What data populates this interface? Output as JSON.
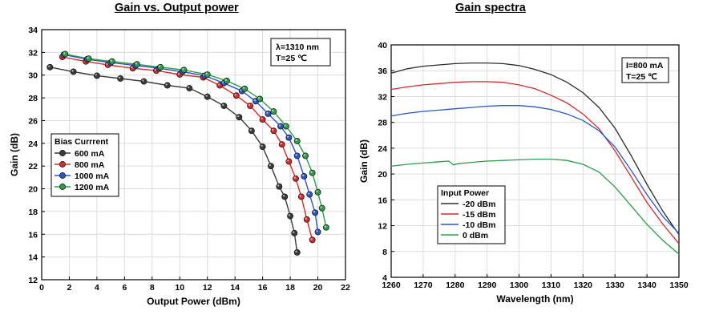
{
  "chart_data": [
    {
      "type": "line",
      "title": "Gain vs. Output power",
      "xlabel": "Output Power (dBm)",
      "ylabel": "Gain (dB)",
      "xlim": [
        0,
        22
      ],
      "ylim": [
        12,
        34
      ],
      "xticks": [
        0,
        2,
        4,
        6,
        8,
        10,
        12,
        14,
        16,
        18,
        20,
        22
      ],
      "yticks": [
        12,
        14,
        16,
        18,
        20,
        22,
        24,
        26,
        28,
        30,
        32,
        34
      ],
      "annotation": [
        "λ=1310 nm",
        "T=25 ℃"
      ],
      "legend_title": "Bias Currrent",
      "legend_position": "left-middle",
      "markers": true,
      "grid": true,
      "series": [
        {
          "name": "600 mA",
          "color": "#3a3a3a",
          "points": [
            [
              0.6,
              30.7
            ],
            [
              2.3,
              30.3
            ],
            [
              4.0,
              29.95
            ],
            [
              5.7,
              29.7
            ],
            [
              7.4,
              29.45
            ],
            [
              9.1,
              29.1
            ],
            [
              10.7,
              28.85
            ],
            [
              12.0,
              28.1
            ],
            [
              13.2,
              27.3
            ],
            [
              14.3,
              26.3
            ],
            [
              15.2,
              25.1
            ],
            [
              16.0,
              23.7
            ],
            [
              16.6,
              22.0
            ],
            [
              17.2,
              20.2
            ],
            [
              17.6,
              19.3
            ],
            [
              18.0,
              17.6
            ],
            [
              18.3,
              16.1
            ],
            [
              18.5,
              14.4
            ]
          ]
        },
        {
          "name": "800 mA",
          "color": "#d42a2a",
          "points": [
            [
              1.5,
              31.6
            ],
            [
              3.2,
              31.2
            ],
            [
              4.8,
              30.9
            ],
            [
              6.6,
              30.6
            ],
            [
              8.3,
              30.4
            ],
            [
              10.0,
              30.05
            ],
            [
              11.7,
              29.8
            ],
            [
              12.9,
              29.1
            ],
            [
              14.1,
              28.2
            ],
            [
              15.1,
              27.3
            ],
            [
              16.0,
              26.1
            ],
            [
              16.8,
              25.1
            ],
            [
              17.4,
              23.9
            ],
            [
              17.9,
              22.4
            ],
            [
              18.4,
              20.9
            ],
            [
              18.8,
              19.3
            ],
            [
              19.2,
              17.3
            ],
            [
              19.6,
              15.5
            ]
          ]
        },
        {
          "name": "1000 mA",
          "color": "#2a56c4",
          "points": [
            [
              1.6,
              31.8
            ],
            [
              3.3,
              31.4
            ],
            [
              5.0,
              31.1
            ],
            [
              6.8,
              30.85
            ],
            [
              8.5,
              30.6
            ],
            [
              10.2,
              30.3
            ],
            [
              11.8,
              29.95
            ],
            [
              13.2,
              29.3
            ],
            [
              14.5,
              28.6
            ],
            [
              15.5,
              27.7
            ],
            [
              16.4,
              26.6
            ],
            [
              17.3,
              25.5
            ],
            [
              17.9,
              24.5
            ],
            [
              18.5,
              22.9
            ],
            [
              19.0,
              21.1
            ],
            [
              19.4,
              19.5
            ],
            [
              19.8,
              17.9
            ],
            [
              20.0,
              16.2
            ]
          ]
        },
        {
          "name": "1200 mA",
          "color": "#2e9a4a",
          "points": [
            [
              1.7,
              31.85
            ],
            [
              3.4,
              31.45
            ],
            [
              5.1,
              31.2
            ],
            [
              6.9,
              30.95
            ],
            [
              8.6,
              30.7
            ],
            [
              10.3,
              30.45
            ],
            [
              12.0,
              30.05
            ],
            [
              13.4,
              29.5
            ],
            [
              14.7,
              28.8
            ],
            [
              15.8,
              27.9
            ],
            [
              16.8,
              26.8
            ],
            [
              17.7,
              25.5
            ],
            [
              18.5,
              24.2
            ],
            [
              19.1,
              22.9
            ],
            [
              19.6,
              21.4
            ],
            [
              20.0,
              19.7
            ],
            [
              20.3,
              18.3
            ],
            [
              20.6,
              16.6
            ]
          ]
        }
      ]
    },
    {
      "type": "line",
      "title": "Gain spectra",
      "xlabel": "Wavelength (nm)",
      "ylabel": "Gain (dB)",
      "xlim": [
        1260,
        1350
      ],
      "ylim": [
        4,
        40
      ],
      "xticks": [
        1260,
        1270,
        1280,
        1290,
        1300,
        1310,
        1320,
        1330,
        1340,
        1350
      ],
      "yticks": [
        4,
        8,
        12,
        16,
        20,
        24,
        28,
        32,
        36,
        40
      ],
      "annotation": [
        "I=800 mA",
        "T=25 ℃"
      ],
      "legend_title": "Input Power",
      "legend_position": "lower-left",
      "grid": true,
      "series": [
        {
          "name": "-20 dBm",
          "color": "#2b2b2b",
          "points": [
            [
              1260,
              35.6
            ],
            [
              1265,
              36.3
            ],
            [
              1270,
              36.7
            ],
            [
              1275,
              36.9
            ],
            [
              1280,
              37.1
            ],
            [
              1285,
              37.2
            ],
            [
              1290,
              37.2
            ],
            [
              1295,
              37.1
            ],
            [
              1300,
              36.8
            ],
            [
              1305,
              36.2
            ],
            [
              1310,
              35.4
            ],
            [
              1315,
              34.2
            ],
            [
              1320,
              32.6
            ],
            [
              1325,
              30.3
            ],
            [
              1330,
              27.1
            ],
            [
              1335,
              22.9
            ],
            [
              1340,
              18.4
            ],
            [
              1345,
              14.2
            ],
            [
              1350,
              10.6
            ]
          ]
        },
        {
          "name": "-15 dBm",
          "color": "#d42a2a",
          "points": [
            [
              1260,
              33.1
            ],
            [
              1265,
              33.5
            ],
            [
              1270,
              33.8
            ],
            [
              1275,
              34.0
            ],
            [
              1280,
              34.2
            ],
            [
              1285,
              34.3
            ],
            [
              1290,
              34.3
            ],
            [
              1295,
              34.2
            ],
            [
              1300,
              33.8
            ],
            [
              1305,
              33.2
            ],
            [
              1310,
              32.2
            ],
            [
              1315,
              31.0
            ],
            [
              1320,
              29.3
            ],
            [
              1325,
              27.0
            ],
            [
              1330,
              23.6
            ],
            [
              1335,
              19.6
            ],
            [
              1340,
              15.6
            ],
            [
              1345,
              12.2
            ],
            [
              1350,
              9.2
            ]
          ]
        },
        {
          "name": "-10 dBm",
          "color": "#2a56c4",
          "points": [
            [
              1260,
              29.0
            ],
            [
              1265,
              29.4
            ],
            [
              1270,
              29.7
            ],
            [
              1275,
              29.9
            ],
            [
              1280,
              30.1
            ],
            [
              1285,
              30.3
            ],
            [
              1290,
              30.5
            ],
            [
              1295,
              30.6
            ],
            [
              1300,
              30.6
            ],
            [
              1305,
              30.4
            ],
            [
              1310,
              30.0
            ],
            [
              1315,
              29.3
            ],
            [
              1320,
              28.3
            ],
            [
              1325,
              26.7
            ],
            [
              1330,
              24.2
            ],
            [
              1335,
              20.6
            ],
            [
              1340,
              16.8
            ],
            [
              1345,
              13.4
            ],
            [
              1350,
              10.8
            ]
          ]
        },
        {
          "name": "0 dBm",
          "color": "#2e9a4a",
          "points": [
            [
              1260,
              21.2
            ],
            [
              1265,
              21.5
            ],
            [
              1270,
              21.7
            ],
            [
              1275,
              21.9
            ],
            [
              1278,
              22.0
            ],
            [
              1279.5,
              21.4
            ],
            [
              1281,
              21.6
            ],
            [
              1285,
              21.8
            ],
            [
              1290,
              22.0
            ],
            [
              1295,
              22.1
            ],
            [
              1300,
              22.2
            ],
            [
              1305,
              22.3
            ],
            [
              1310,
              22.3
            ],
            [
              1315,
              22.1
            ],
            [
              1320,
              21.5
            ],
            [
              1325,
              20.3
            ],
            [
              1330,
              18.0
            ],
            [
              1335,
              15.1
            ],
            [
              1340,
              12.2
            ],
            [
              1345,
              9.7
            ],
            [
              1350,
              7.6
            ]
          ]
        }
      ]
    }
  ]
}
